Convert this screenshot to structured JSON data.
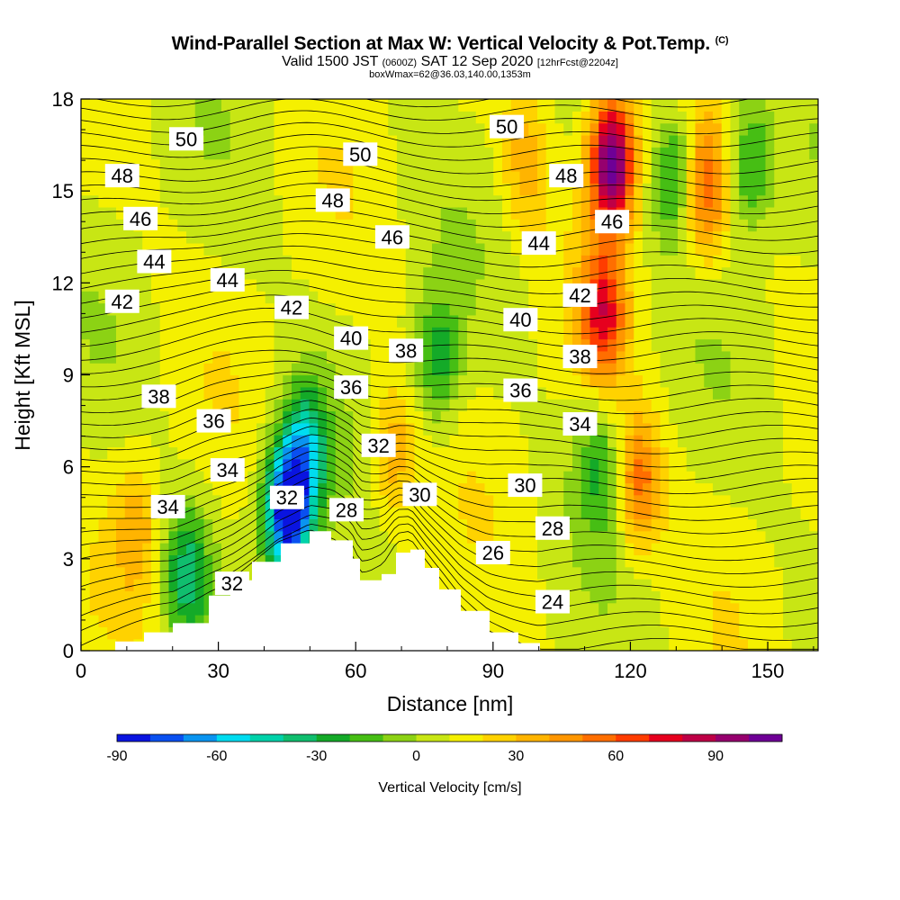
{
  "title": {
    "main": "Wind-Parallel Section at Max W: Vertical Velocity & Pot.Temp.",
    "copyright": "(C)",
    "valid_prefix": "Valid 1500 JST",
    "valid_utc": "(0600Z)",
    "valid_date": "SAT 12 Sep 2020",
    "forecast": "[12hrFcst@2204z]",
    "box": "boxWmax=62@36.03,140.00,1353m"
  },
  "chart_data": {
    "type": "heatmap",
    "xlabel": "Distance [nm]",
    "ylabel": "Height [Kft MSL]",
    "xlim": [
      0,
      161
    ],
    "ylim": [
      0,
      18
    ],
    "x_ticks": [
      0,
      30,
      60,
      90,
      120,
      150
    ],
    "y_ticks": [
      0,
      3,
      6,
      9,
      12,
      15,
      18
    ],
    "colorbar": {
      "label": "Vertical Velocity [cm/s]",
      "range": [
        -90,
        110
      ],
      "step": 10,
      "tick_values": [
        -90,
        -60,
        -30,
        0,
        30,
        60,
        90
      ],
      "colors": [
        "#0a14e0",
        "#0a50f0",
        "#0a94f0",
        "#00dcf0",
        "#00d2aa",
        "#10be6e",
        "#14aa28",
        "#46be14",
        "#8cd214",
        "#c8e614",
        "#f5f000",
        "#ffd200",
        "#ffb400",
        "#ff9600",
        "#ff6e00",
        "#ff3c00",
        "#e6001e",
        "#be0046",
        "#96006e",
        "#6e0096"
      ]
    },
    "vertical_velocity_features": [
      {
        "x": 45,
        "z": 4.5,
        "w": -90
      },
      {
        "x": 49,
        "z": 6.5,
        "w": -45
      },
      {
        "x": 23,
        "z": 2.5,
        "w": -35
      },
      {
        "x": 78,
        "z": 9.5,
        "w": -25
      },
      {
        "x": 113,
        "z": 6.0,
        "w": -20
      },
      {
        "x": 130,
        "z": 15.5,
        "w": -30
      },
      {
        "x": 146,
        "z": 16.0,
        "w": -25
      },
      {
        "x": 12,
        "z": 4.0,
        "w": 35
      },
      {
        "x": 68,
        "z": 6.5,
        "w": 40
      },
      {
        "x": 116,
        "z": 16.0,
        "w": 110
      },
      {
        "x": 114,
        "z": 11.0,
        "w": 70
      },
      {
        "x": 122,
        "z": 5.5,
        "w": 55
      },
      {
        "x": 136,
        "z": 15.0,
        "w": 60
      },
      {
        "x": 97,
        "z": 16.0,
        "w": 35
      }
    ],
    "terrain_profile": {
      "x": [
        0,
        7,
        13,
        20,
        28,
        33,
        38,
        43,
        50,
        55,
        59,
        61,
        63,
        66,
        69,
        72,
        75,
        79,
        83,
        89,
        95,
        100
      ],
      "z": [
        0,
        0.3,
        0.6,
        0.9,
        1.8,
        2.3,
        2.9,
        3.5,
        3.9,
        3.6,
        3.0,
        2.3,
        2.3,
        2.5,
        3.2,
        3.3,
        2.7,
        2.0,
        1.3,
        0.6,
        0.25,
        0
      ]
    },
    "potential_temperature_labels": [
      {
        "text": "50",
        "x": 23,
        "z": 16.7
      },
      {
        "text": "48",
        "x": 9,
        "z": 15.5
      },
      {
        "text": "46",
        "x": 13,
        "z": 14.1
      },
      {
        "text": "44",
        "x": 16,
        "z": 12.7
      },
      {
        "text": "42",
        "x": 9,
        "z": 11.4
      },
      {
        "text": "38",
        "x": 17,
        "z": 8.3
      },
      {
        "text": "34",
        "x": 19,
        "z": 4.7
      },
      {
        "text": "32",
        "x": 33,
        "z": 2.2
      },
      {
        "text": "44",
        "x": 32,
        "z": 12.1
      },
      {
        "text": "36",
        "x": 29,
        "z": 7.5
      },
      {
        "text": "34",
        "x": 32,
        "z": 5.9
      },
      {
        "text": "50",
        "x": 61,
        "z": 16.2
      },
      {
        "text": "48",
        "x": 55,
        "z": 14.7
      },
      {
        "text": "46",
        "x": 68,
        "z": 13.5
      },
      {
        "text": "42",
        "x": 46,
        "z": 11.2
      },
      {
        "text": "40",
        "x": 59,
        "z": 10.2
      },
      {
        "text": "38",
        "x": 71,
        "z": 9.8
      },
      {
        "text": "36",
        "x": 59,
        "z": 8.6
      },
      {
        "text": "32",
        "x": 65,
        "z": 6.7
      },
      {
        "text": "32",
        "x": 45,
        "z": 5.0
      },
      {
        "text": "28",
        "x": 58,
        "z": 4.6
      },
      {
        "text": "30",
        "x": 74,
        "z": 5.1
      },
      {
        "text": "50",
        "x": 93,
        "z": 17.1
      },
      {
        "text": "48",
        "x": 106,
        "z": 15.5
      },
      {
        "text": "46",
        "x": 116,
        "z": 14.0
      },
      {
        "text": "44",
        "x": 100,
        "z": 13.3
      },
      {
        "text": "42",
        "x": 109,
        "z": 11.6
      },
      {
        "text": "40",
        "x": 96,
        "z": 10.8
      },
      {
        "text": "38",
        "x": 109,
        "z": 9.6
      },
      {
        "text": "36",
        "x": 96,
        "z": 8.5
      },
      {
        "text": "34",
        "x": 109,
        "z": 7.4
      },
      {
        "text": "30",
        "x": 97,
        "z": 5.4
      },
      {
        "text": "28",
        "x": 103,
        "z": 4.0
      },
      {
        "text": "26",
        "x": 90,
        "z": 3.2
      },
      {
        "text": "24",
        "x": 103,
        "z": 1.6
      }
    ]
  }
}
